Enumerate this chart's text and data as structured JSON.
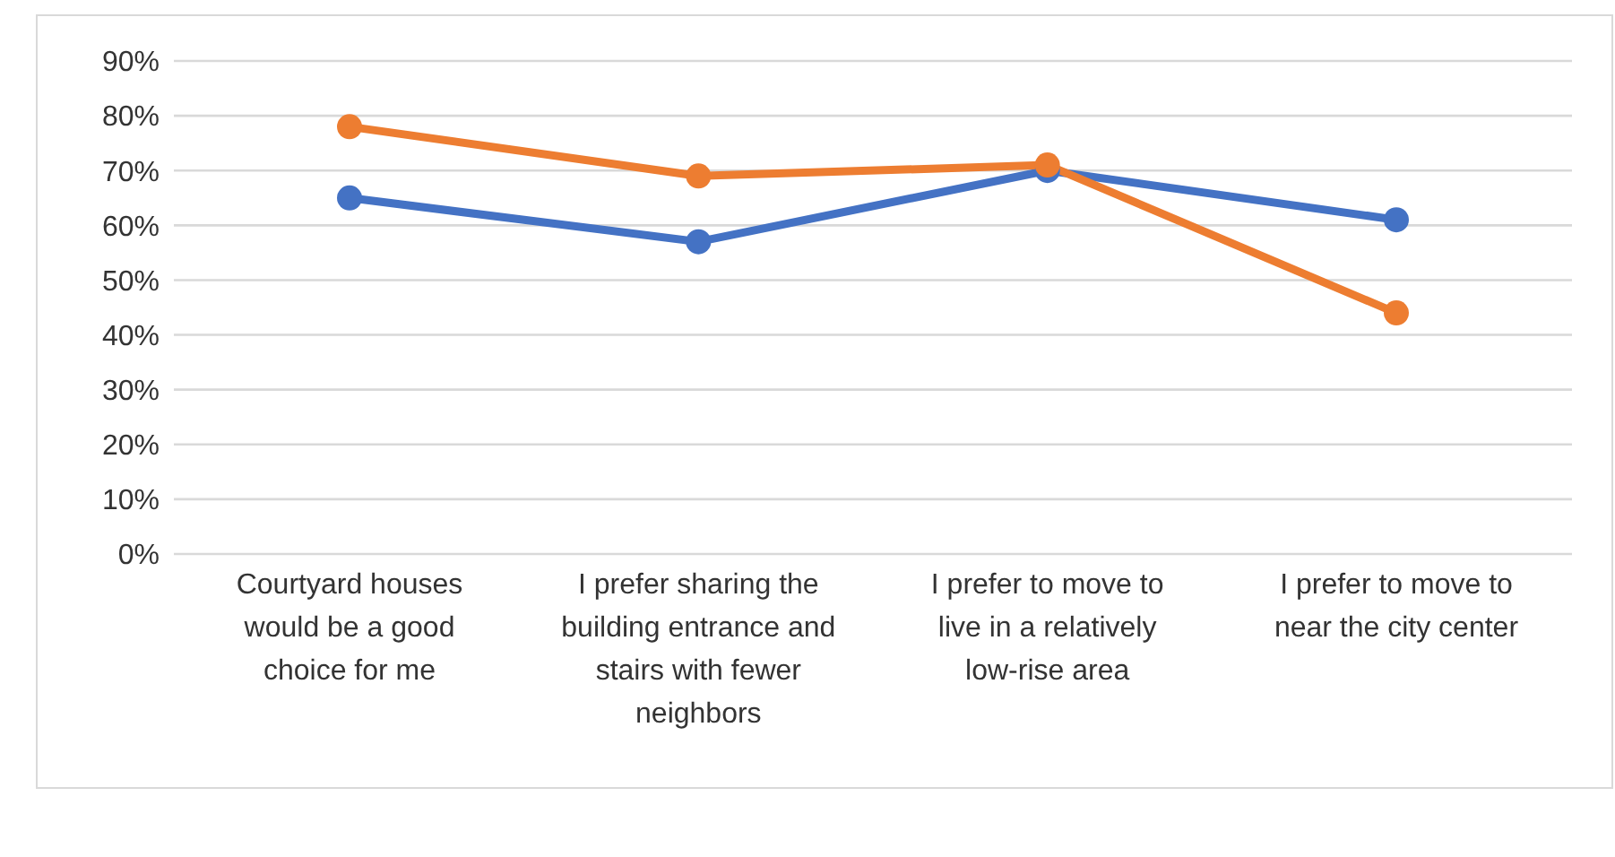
{
  "chart_data": {
    "type": "line",
    "categories": [
      "Courtyard houses would be a good choice for me",
      "I prefer sharing the building entrance and stairs with fewer neighbors",
      "I prefer to move to live in a relatively low-rise area",
      "I prefer to move to near the city center"
    ],
    "series": [
      {
        "color": "#4472c4",
        "values": [
          65,
          57,
          70,
          61
        ]
      },
      {
        "color": "#ed7d31",
        "values": [
          78,
          69,
          71,
          44
        ]
      }
    ],
    "ylim": [
      0,
      90
    ],
    "yticks": [
      {
        "value": 0,
        "label": "0%"
      },
      {
        "value": 10,
        "label": "10%"
      },
      {
        "value": 20,
        "label": "20%"
      },
      {
        "value": 30,
        "label": "30%"
      },
      {
        "value": 40,
        "label": "40%"
      },
      {
        "value": 50,
        "label": "50%"
      },
      {
        "value": 60,
        "label": "60%"
      },
      {
        "value": 70,
        "label": "70%"
      },
      {
        "value": 80,
        "label": "80%"
      },
      {
        "value": 90,
        "label": "90%"
      }
    ],
    "grid": "y",
    "marker": "circle",
    "line_style": "solid",
    "legend": false
  }
}
